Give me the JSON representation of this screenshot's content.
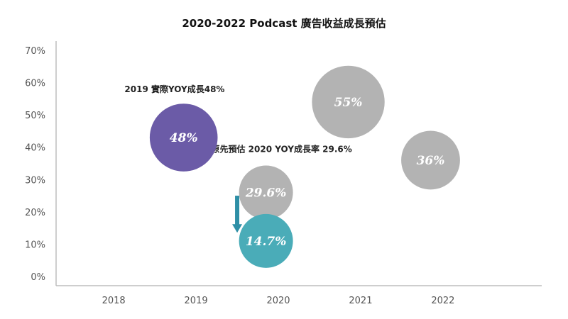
{
  "chart_data": {
    "type": "scatter",
    "title": "2020-2022 Podcast 廣告收益成長預估",
    "xlabel": "",
    "ylabel": "",
    "x_categories": [
      "2018",
      "2019",
      "2020",
      "2021",
      "2022"
    ],
    "xlim": [
      2017.3,
      2023.2
    ],
    "ylim": [
      0,
      70
    ],
    "y_ticks": [
      0,
      10,
      20,
      30,
      40,
      50,
      60,
      70
    ],
    "y_tick_labels": [
      "0%",
      "10%",
      "20%",
      "30%",
      "40%",
      "50%",
      "60%",
      "70%"
    ],
    "grid": false,
    "legend": "none",
    "bubbles": [
      {
        "x": 2018.85,
        "y": 43,
        "label": "48%",
        "value": 48,
        "color": "#6b5ba7"
      },
      {
        "x": 2019.85,
        "y": 26,
        "label": "29.6%",
        "value": 29.6,
        "color": "#b3b3b3"
      },
      {
        "x": 2019.85,
        "y": 11,
        "label": "14.7%",
        "value": 14.7,
        "color": "#4aacb8"
      },
      {
        "x": 2020.85,
        "y": 54,
        "label": "55%",
        "value": 55,
        "color": "#b3b3b3"
      },
      {
        "x": 2021.85,
        "y": 36,
        "label": "36%",
        "value": 36,
        "color": "#b3b3b3"
      }
    ],
    "annotations": [
      {
        "text": "2019 實際YOY成長48%",
        "x": 2018.74,
        "y": 57,
        "anchor": "middle"
      },
      {
        "text": "原先預估 2020 YOY成長率 29.6%",
        "x": 2020.04,
        "y": 38.5,
        "anchor": "middle"
      }
    ],
    "arrow": {
      "x": 2019.5,
      "y_from": 25,
      "y_to": 14,
      "color": "#2e8fa6"
    }
  }
}
